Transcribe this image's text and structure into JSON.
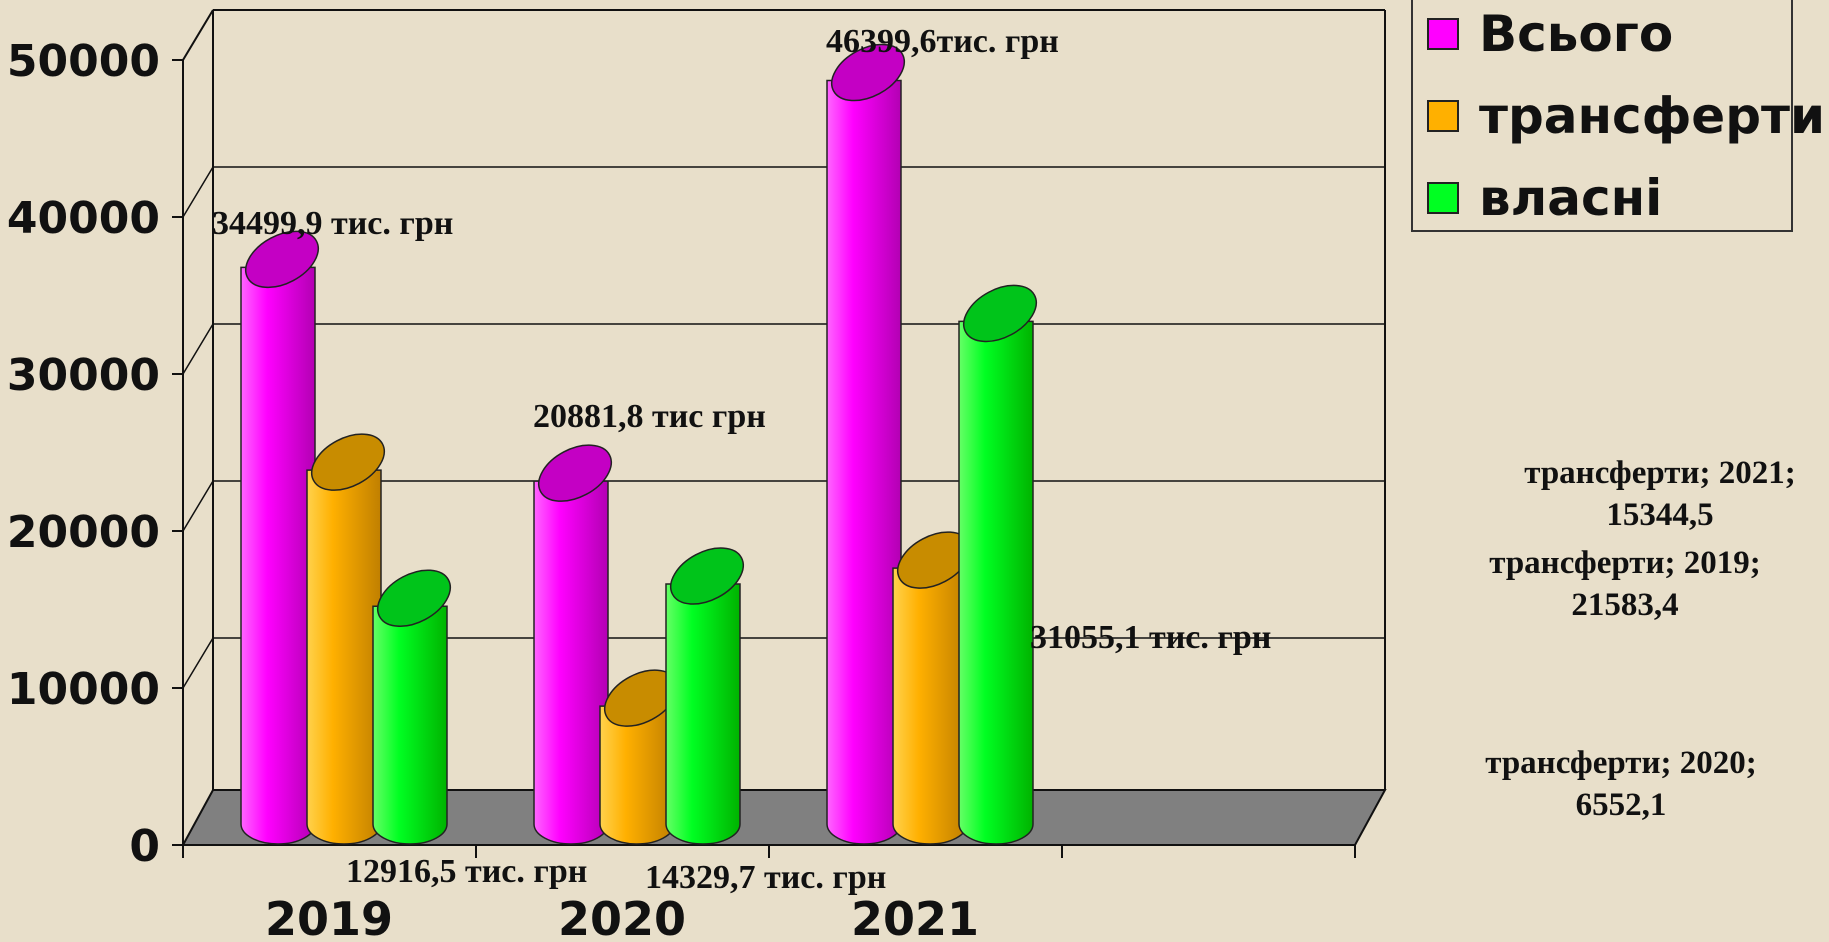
{
  "chart_data": {
    "type": "bar",
    "categories": [
      "2019",
      "2020",
      "2021"
    ],
    "series": [
      {
        "name": "Всього",
        "color": "#ff00ff",
        "values": [
          34499.9,
          20881.8,
          46399.6
        ]
      },
      {
        "name": "трансферти",
        "color": "#ffb000",
        "values": [
          21583.4,
          6552.1,
          15344.5
        ]
      },
      {
        "name": "власні",
        "color": "#00ff22",
        "values": [
          12916.5,
          14329.7,
          31055.1
        ]
      }
    ],
    "ylim": [
      0,
      50000
    ],
    "yticks": [
      "0",
      "10000",
      "20000",
      "30000",
      "40000",
      "50000"
    ],
    "grid": true,
    "legend_position": "top-right",
    "data_labels": [
      "34499,9 тис. грн",
      "20881,8 тис грн",
      "46399,6тис. грн",
      "12916,5 тис. грн",
      "14329,7 тис. грн",
      "31055,1 тис. грн"
    ],
    "side_labels": [
      {
        "line1": "трансферти; 2021;",
        "line2": "15344,5"
      },
      {
        "line1": "трансферти; 2019;",
        "line2": "21583,4"
      },
      {
        "line1": "трансферти; 2020;",
        "line2": "6552,1"
      }
    ]
  }
}
